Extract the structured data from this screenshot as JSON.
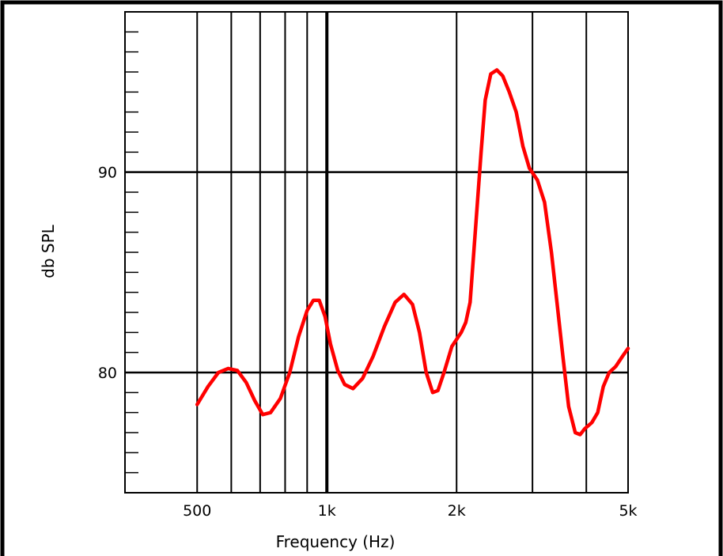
{
  "chart_data": {
    "type": "line",
    "title": "",
    "xlabel": "Frequency (Hz)",
    "ylabel": "db SPL",
    "x_scale": "log",
    "xlim": [
      340,
      5000
    ],
    "ylim": [
      74,
      98
    ],
    "x_ticks": [
      {
        "value": 500,
        "label": "500"
      },
      {
        "value": 1000,
        "label": "1k"
      },
      {
        "value": 2000,
        "label": "2k"
      },
      {
        "value": 5000,
        "label": "5k"
      }
    ],
    "y_ticks": [
      {
        "value": 80,
        "label": "80"
      },
      {
        "value": 90,
        "label": "90"
      }
    ],
    "grid": true,
    "x_grid_values": [
      500,
      600,
      700,
      800,
      900,
      1000,
      2000,
      3000,
      4000,
      5000
    ],
    "y_grid_values": [
      80,
      90
    ],
    "y_minor_step": 1,
    "series": [
      {
        "name": "",
        "color": "#ff0000",
        "points": [
          [
            500,
            78.4
          ],
          [
            530,
            79.3
          ],
          [
            560,
            80.0
          ],
          [
            590,
            80.2
          ],
          [
            620,
            80.1
          ],
          [
            650,
            79.5
          ],
          [
            680,
            78.6
          ],
          [
            710,
            77.9
          ],
          [
            740,
            78.0
          ],
          [
            780,
            78.7
          ],
          [
            820,
            80.0
          ],
          [
            860,
            81.8
          ],
          [
            900,
            83.1
          ],
          [
            930,
            83.6
          ],
          [
            960,
            83.6
          ],
          [
            990,
            82.8
          ],
          [
            1020,
            81.4
          ],
          [
            1060,
            80.1
          ],
          [
            1100,
            79.4
          ],
          [
            1150,
            79.2
          ],
          [
            1210,
            79.7
          ],
          [
            1280,
            80.8
          ],
          [
            1360,
            82.3
          ],
          [
            1440,
            83.5
          ],
          [
            1510,
            83.9
          ],
          [
            1580,
            83.4
          ],
          [
            1640,
            82.0
          ],
          [
            1700,
            80.0
          ],
          [
            1760,
            79.0
          ],
          [
            1810,
            79.1
          ],
          [
            1870,
            80.0
          ],
          [
            1950,
            81.3
          ],
          [
            2050,
            82.0
          ],
          [
            2100,
            82.5
          ],
          [
            2150,
            83.5
          ],
          [
            2210,
            87.0
          ],
          [
            2280,
            91.0
          ],
          [
            2330,
            93.6
          ],
          [
            2400,
            94.9
          ],
          [
            2480,
            95.1
          ],
          [
            2560,
            94.8
          ],
          [
            2650,
            94.0
          ],
          [
            2750,
            93.0
          ],
          [
            2850,
            91.3
          ],
          [
            2950,
            90.2
          ],
          [
            3080,
            89.6
          ],
          [
            3200,
            88.5
          ],
          [
            3320,
            86.0
          ],
          [
            3420,
            83.5
          ],
          [
            3530,
            80.8
          ],
          [
            3640,
            78.3
          ],
          [
            3770,
            77.0
          ],
          [
            3870,
            76.9
          ],
          [
            3970,
            77.2
          ],
          [
            4120,
            77.5
          ],
          [
            4250,
            78.0
          ],
          [
            4380,
            79.3
          ],
          [
            4520,
            80.0
          ],
          [
            4680,
            80.3
          ],
          [
            4850,
            80.8
          ],
          [
            5000,
            81.2
          ]
        ]
      }
    ]
  }
}
